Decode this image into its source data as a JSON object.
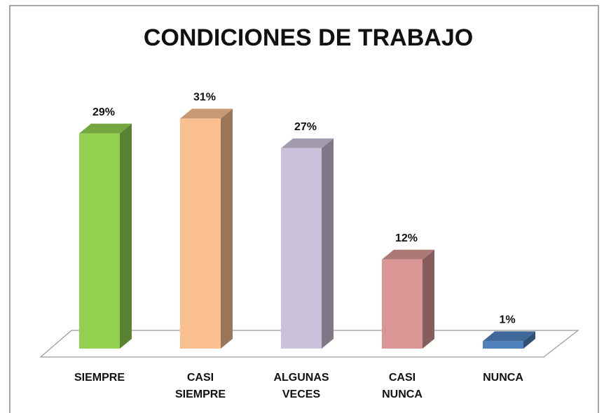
{
  "chart_data": {
    "type": "bar3d",
    "title": "CONDICIONES DE TRABAJO",
    "categories": [
      "SIEMPRE",
      "CASI SIEMPRE",
      "ALGUNAS VECES",
      "CASI NUNCA",
      "NUNCA"
    ],
    "values": [
      29,
      31,
      27,
      12,
      1
    ],
    "value_labels": [
      "29%",
      "31%",
      "27%",
      "12%",
      "1%"
    ],
    "colors": [
      "#92d050",
      "#fac090",
      "#ccc1da",
      "#d99694",
      "#4f81bd"
    ]
  }
}
